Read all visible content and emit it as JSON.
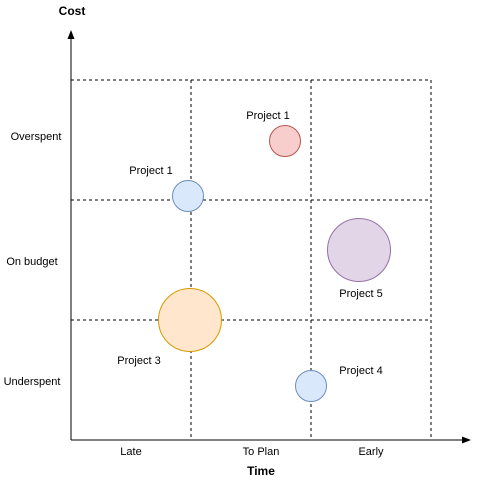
{
  "diagram": {
    "y_axis_title": "Cost",
    "x_axis_title": "Time",
    "rows": [
      "Overspent",
      "On budget",
      "Underspent"
    ],
    "columns": [
      "Late",
      "To Plan",
      "Early"
    ],
    "projects": [
      {
        "label": "Project 1",
        "fill": "#f8cecc",
        "stroke": "#b85450"
      },
      {
        "label": "Project 1",
        "fill": "#dae8fc",
        "stroke": "#6c8ebf"
      },
      {
        "label": "Project 5",
        "fill": "#e1d5e7",
        "stroke": "#9673a6"
      },
      {
        "label": "Project 3",
        "fill": "#ffe6cc",
        "stroke": "#d79b00"
      },
      {
        "label": "Project 4",
        "fill": "#dae8fc",
        "stroke": "#6c8ebf"
      }
    ]
  }
}
